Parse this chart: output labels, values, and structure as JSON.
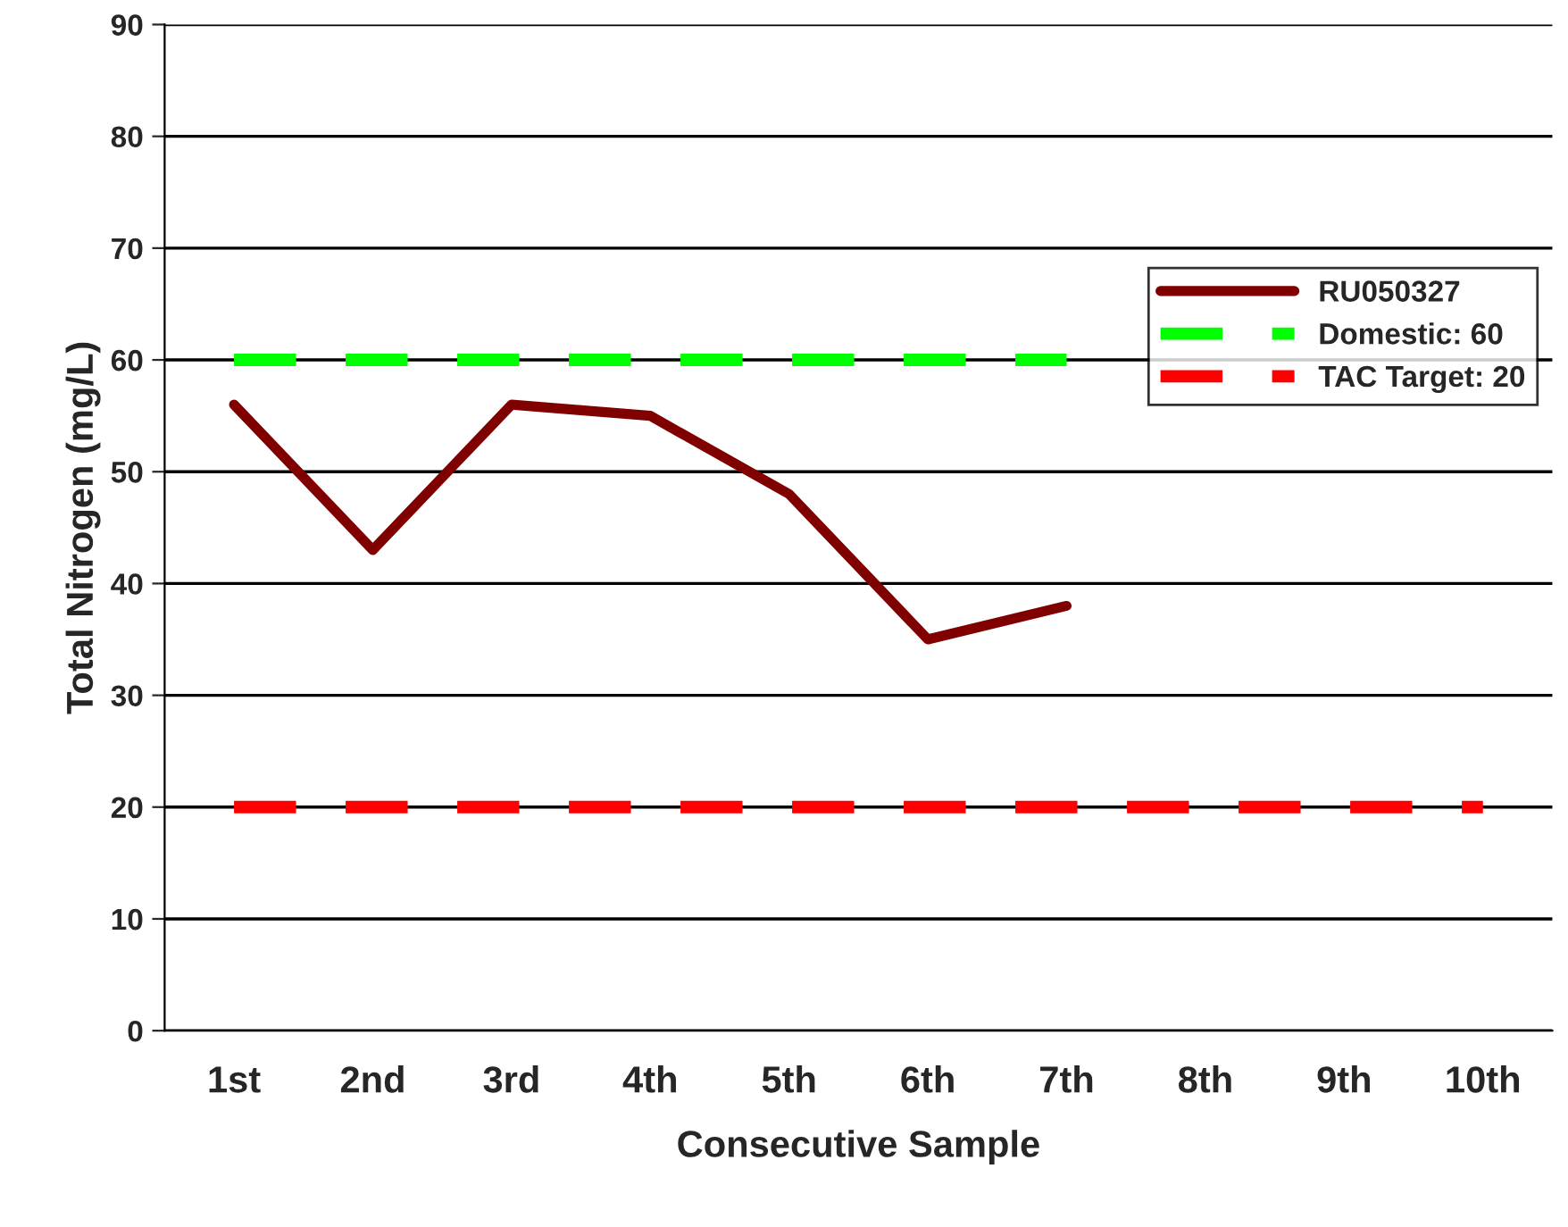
{
  "chart_data": {
    "type": "line",
    "xlabel": "Consecutive Sample",
    "ylabel": "Total Nitrogen (mg/L)",
    "categories": [
      "1st",
      "2nd",
      "3rd",
      "4th",
      "5th",
      "6th",
      "7th",
      "8th",
      "9th",
      "10th"
    ],
    "series": [
      {
        "name": "RU050327",
        "color": "#800000",
        "line_style": "solid",
        "values": [
          56,
          43,
          56,
          55,
          48,
          35,
          38,
          null,
          null,
          null
        ]
      },
      {
        "name": "Domestic: 60",
        "color": "#00ff00",
        "line_style": "dashed",
        "values": [
          60,
          60,
          60,
          60,
          60,
          60,
          60,
          null,
          null,
          null
        ]
      },
      {
        "name": "TAC Target: 20",
        "color": "#ff0000",
        "line_style": "dashed",
        "values": [
          20,
          20,
          20,
          20,
          20,
          20,
          20,
          20,
          20,
          20
        ]
      }
    ],
    "ylim": [
      0,
      90
    ],
    "yticks": [
      0,
      10,
      20,
      30,
      40,
      50,
      60,
      70,
      80,
      90
    ],
    "grid": "y",
    "legend": "right",
    "marker": "none"
  }
}
